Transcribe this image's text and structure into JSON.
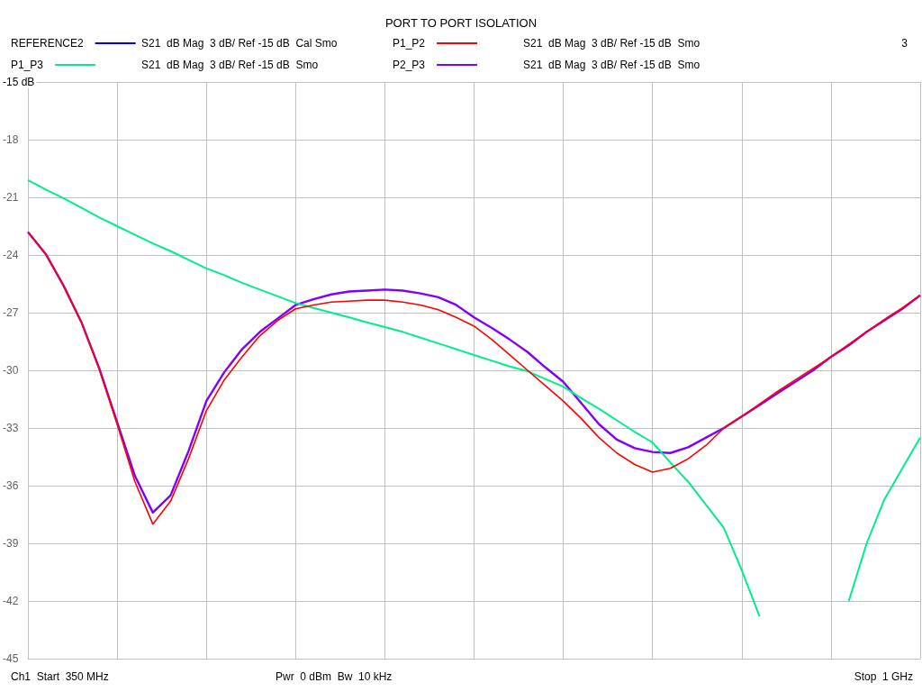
{
  "chart_data": {
    "type": "line",
    "title": "PORT TO PORT ISOLATION",
    "annotations": [
      "S21  dB Mag  3 dB/ Ref -15 dB  Cal Smo",
      "S21  dB Mag  3 dB/ Ref -15 dB  Smo",
      "S21  dB Mag  3 dB/ Ref -15 dB  Smo",
      "S21  dB Mag  3 dB/ Ref -15 dB  Smo",
      "3",
      "Ch1  Start  350 MHz",
      "Pwr  0 dBm  Bw  10 kHz",
      "Stop  1 GHz"
    ],
    "categories": [
      null,
      null,
      null,
      null,
      null,
      null,
      null,
      null,
      null,
      null,
      null,
      null,
      null,
      null,
      null,
      null,
      null,
      null,
      null,
      null,
      null,
      null,
      null,
      null,
      null,
      null,
      null,
      null,
      null,
      null,
      null,
      null,
      null,
      null,
      null,
      null,
      null,
      null,
      null,
      null,
      null,
      null,
      null,
      null,
      null,
      null,
      null,
      null,
      null,
      null,
      null
    ],
    "series": [
      {
        "name": "REFERENCE2",
        "color": "#0000ff",
        "values": [
          null,
          null,
          null,
          null,
          null,
          null,
          null,
          null,
          null,
          null,
          null,
          null,
          null,
          null,
          null,
          null,
          null,
          null,
          null,
          null,
          null,
          null,
          null,
          null,
          null,
          null,
          null,
          null,
          null,
          null,
          null,
          null,
          null,
          null,
          null,
          null,
          null,
          null,
          null,
          null,
          null,
          null,
          null,
          null,
          null,
          null,
          null,
          null,
          null,
          null,
          null
        ]
      },
      {
        "name": "P1_P2",
        "color": "#ff0000",
        "values": [
          -22.8,
          -23.95,
          -25.6,
          -27.5,
          -29.95,
          -32.8,
          -35.8,
          -38.0,
          -36.8,
          -34.6,
          -32.1,
          -30.5,
          -29.3,
          -28.2,
          -27.4,
          -26.8,
          -26.6,
          -26.45,
          -26.4,
          -26.35,
          -26.35,
          -26.45,
          -26.6,
          -26.85,
          -27.25,
          -27.7,
          -28.4,
          -29.2,
          -30.0,
          -30.8,
          -31.6,
          -32.5,
          -33.5,
          -34.3,
          -34.9,
          -35.3,
          -35.1,
          -34.6,
          -33.9,
          -33.0,
          -32.4,
          -31.75,
          -31.1,
          -30.5,
          -29.9,
          -29.3,
          -28.65,
          -28.0,
          -27.35,
          -26.75,
          -26.1
        ]
      },
      {
        "name": "P1_P3",
        "color": "#00ee88",
        "values": [
          -20.1,
          -20.6,
          -21.05,
          -21.55,
          -22.05,
          -22.5,
          -22.95,
          -23.4,
          -23.8,
          -24.25,
          -24.7,
          -25.05,
          -25.45,
          -25.8,
          -26.15,
          -26.5,
          -26.75,
          -27.0,
          -27.25,
          -27.5,
          -27.75,
          -28.0,
          -28.3,
          -28.6,
          -28.9,
          -29.2,
          -29.5,
          -29.8,
          -30.05,
          -30.45,
          -30.85,
          -31.45,
          -32.0,
          -32.6,
          -33.2,
          -33.75,
          -34.8,
          -35.8,
          -37.0,
          -38.2,
          -40.4,
          -42.8,
          null,
          null,
          null,
          null,
          -42.0,
          -39.0,
          -36.7,
          -35.1,
          -33.5
        ]
      },
      {
        "name": "P2_P3",
        "color": "#8000ff",
        "values": [
          -22.8,
          -23.95,
          -25.6,
          -27.5,
          -29.9,
          -32.7,
          -35.5,
          -37.4,
          -36.5,
          -34.2,
          -31.6,
          -30.1,
          -28.9,
          -28.0,
          -27.3,
          -26.6,
          -26.3,
          -26.05,
          -25.9,
          -25.85,
          -25.8,
          -25.85,
          -26.0,
          -26.2,
          -26.6,
          -27.25,
          -27.8,
          -28.4,
          -29.05,
          -29.85,
          -30.6,
          -31.7,
          -32.8,
          -33.6,
          -34.05,
          -34.25,
          -34.3,
          -34.0,
          -33.5,
          -33.0,
          -32.4,
          -31.8,
          -31.2,
          -30.6,
          -30.0,
          -29.3,
          -28.7,
          -28.0,
          -27.4,
          -26.8,
          -26.1
        ]
      }
    ],
    "ylim": [
      -45,
      -15
    ],
    "yticks": [
      -45,
      -42,
      -39,
      -36,
      -33,
      -30,
      -27,
      -24,
      -21,
      -18,
      {
        "value": -15,
        "label": "-15 dB"
      }
    ],
    "tick_labels": "y",
    "grid": true,
    "legend": "top",
    "marker": "none",
    "line_style": "solid"
  }
}
